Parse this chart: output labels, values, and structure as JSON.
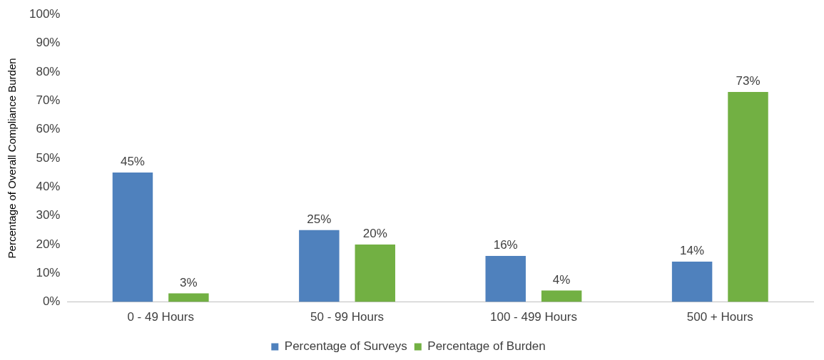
{
  "chart_data": {
    "type": "bar",
    "ylabel": "Percentage of Overall Compliance Burden",
    "categories": [
      "0 - 49 Hours",
      "50 - 99 Hours",
      "100 - 499 Hours",
      "500 + Hours"
    ],
    "series": [
      {
        "name": "Percentage of Surveys",
        "color": "#4f81bd",
        "values": [
          45,
          25,
          16,
          14
        ],
        "value_labels": [
          "45%",
          "25%",
          "16%",
          "14%"
        ]
      },
      {
        "name": "Percentage of Burden",
        "color": "#72b043",
        "values": [
          3,
          20,
          4,
          73
        ],
        "value_labels": [
          "3%",
          "20%",
          "4%",
          "73%"
        ]
      }
    ],
    "ylim": [
      0,
      100
    ],
    "yticks": [
      {
        "value": 0,
        "label": "0%"
      },
      {
        "value": 10,
        "label": "10%"
      },
      {
        "value": 20,
        "label": "20%"
      },
      {
        "value": 30,
        "label": "30%"
      },
      {
        "value": 40,
        "label": "40%"
      },
      {
        "value": 50,
        "label": "50%"
      },
      {
        "value": 60,
        "label": "60%"
      },
      {
        "value": 70,
        "label": "70%"
      },
      {
        "value": 80,
        "label": "80%"
      },
      {
        "value": 90,
        "label": "90%"
      },
      {
        "value": 100,
        "label": "100%"
      }
    ],
    "legend": "bottom"
  }
}
